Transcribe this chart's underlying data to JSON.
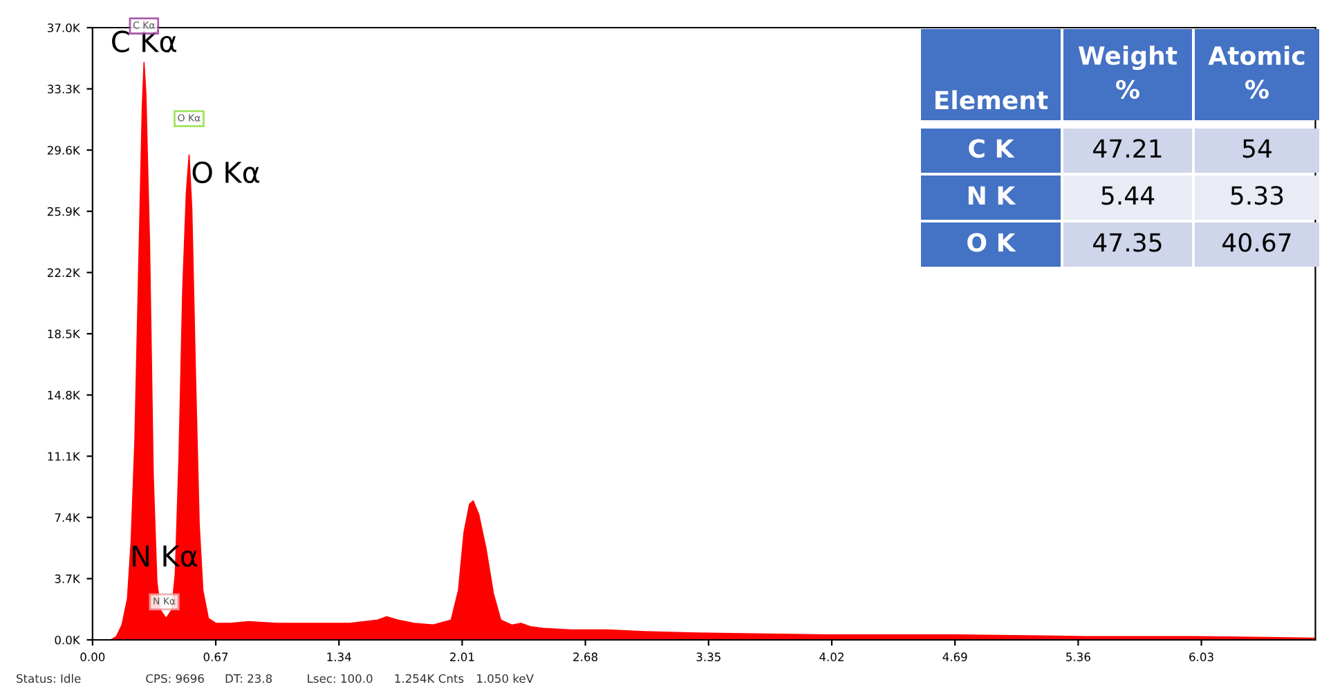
{
  "chart_data": [
    {
      "type": "area",
      "color": "#ff0000",
      "x": [
        0.1,
        0.13,
        0.16,
        0.19,
        0.21,
        0.23,
        0.25,
        0.27,
        0.28,
        0.29,
        0.31,
        0.33,
        0.35,
        0.37,
        0.4,
        0.43,
        0.45,
        0.47,
        0.49,
        0.51,
        0.525,
        0.54,
        0.56,
        0.58,
        0.6,
        0.63,
        0.67,
        0.75,
        0.85,
        1.0,
        1.2,
        1.4,
        1.55,
        1.6,
        1.66,
        1.75,
        1.85,
        1.95,
        1.99,
        2.02,
        2.05,
        2.07,
        2.1,
        2.14,
        2.18,
        2.22,
        2.28,
        2.33,
        2.38,
        2.45,
        2.6,
        2.8,
        3.0,
        3.35,
        4.0,
        4.7,
        5.4,
        6.0,
        6.65
      ],
      "values": [
        0,
        200,
        900,
        2500,
        6000,
        12000,
        22000,
        32000,
        34900,
        33000,
        24000,
        10000,
        3500,
        1800,
        1300,
        1800,
        4000,
        11000,
        21000,
        27000,
        29300,
        26000,
        16000,
        7000,
        3000,
        1300,
        1000,
        1000,
        1100,
        1000,
        1000,
        1000,
        1200,
        1400,
        1200,
        1000,
        900,
        1200,
        3000,
        6500,
        8200,
        8400,
        7600,
        5500,
        2800,
        1200,
        900,
        1000,
        800,
        700,
        600,
        600,
        500,
        400,
        300,
        300,
        200,
        200,
        100
      ],
      "xlim": [
        0,
        6.65
      ],
      "xticks": [
        {
          "value": 0,
          "label": "0.00"
        },
        {
          "value": 0.67,
          "label": "0.67"
        },
        {
          "value": 1.34,
          "label": "1.34"
        },
        {
          "value": 2.01,
          "label": "2.01"
        },
        {
          "value": 2.68,
          "label": "2.68"
        },
        {
          "value": 3.35,
          "label": "3.35"
        },
        {
          "value": 4.02,
          "label": "4.02"
        },
        {
          "value": 4.69,
          "label": "4.69"
        },
        {
          "value": 5.36,
          "label": "5.36"
        },
        {
          "value": 6.03,
          "label": "6.03"
        }
      ],
      "ylim": [
        0,
        37000
      ],
      "yticks": [
        {
          "value": 0,
          "label": "0.0K"
        },
        {
          "value": 3700,
          "label": "3.7K"
        },
        {
          "value": 7400,
          "label": "7.4K"
        },
        {
          "value": 11100,
          "label": "11.1K"
        },
        {
          "value": 14800,
          "label": "14.8K"
        },
        {
          "value": 18500,
          "label": "18.5K"
        },
        {
          "value": 22200,
          "label": "22.2K"
        },
        {
          "value": 25900,
          "label": "25.9K"
        },
        {
          "value": 29600,
          "label": "29.6K"
        },
        {
          "value": 33300,
          "label": "33.3K"
        },
        {
          "value": 37000,
          "label": "37.0K"
        }
      ],
      "grid": false,
      "annotations": [
        {
          "text": "C Kα",
          "x": 0.28,
          "y": 34900
        },
        {
          "text": "O Kα",
          "x": 0.525,
          "y": 29300
        },
        {
          "text": "N Kα",
          "x": 0.39,
          "y": 1300
        },
        "Status: Idle",
        "CPS: 9696",
        "DT: 23.8",
        "Lsec: 100.0",
        "1.254K Cnts",
        "1.050 keV"
      ]
    },
    {
      "type": "other",
      "ylabel": "Element",
      "categories": [
        "Weight %",
        "Atomic %"
      ],
      "y_categories": [
        "C K",
        "N K",
        "O K"
      ],
      "cell_labels": [
        [
          "47.21",
          "54"
        ],
        [
          "5.44",
          "5.33"
        ],
        [
          "47.35",
          "40.67"
        ]
      ]
    }
  ]
}
